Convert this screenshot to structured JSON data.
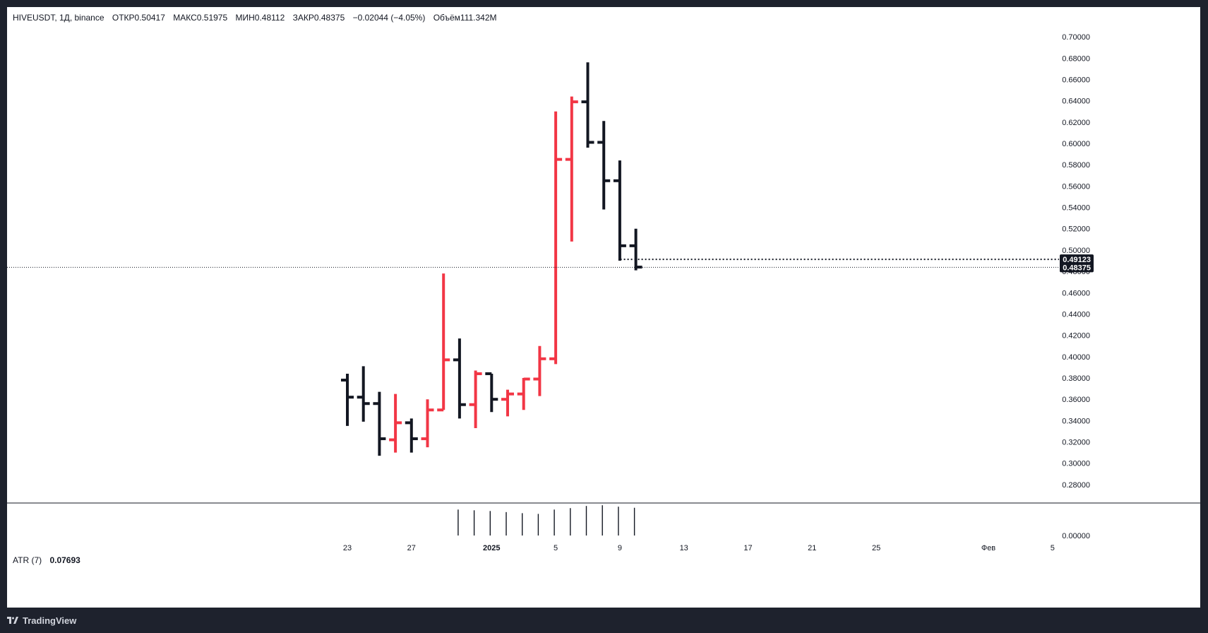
{
  "legend": {
    "symbol": "HIVEUSDT, 1Д, binance",
    "open": "ОТКР0.50417",
    "high": "МАКС0.51975",
    "low": "МИН0.48112",
    "close": "ЗАКР0.48375",
    "change": "−0.02044 (−4.05%)",
    "volume": "Объём111.342M"
  },
  "atr": {
    "label": "ATR (7)",
    "value": "0.07693",
    "axis_zero": "0.00000"
  },
  "footer": {
    "brand": "TradingView"
  },
  "colors": {
    "up": "#f23645",
    "down": "#131722",
    "background": "#ffffff",
    "frame": "#1e222d"
  },
  "price_labels": {
    "marker": "0.49123",
    "last": "0.48375"
  },
  "chart_data": {
    "type": "ohlc-bar",
    "title": "HIVEUSDT, 1Д, binance",
    "y_ticks": [
      "0.70000",
      "0.68000",
      "0.66000",
      "0.64000",
      "0.62000",
      "0.60000",
      "0.58000",
      "0.56000",
      "0.54000",
      "0.52000",
      "0.50000",
      "0.48000",
      "0.46000",
      "0.44000",
      "0.42000",
      "0.40000",
      "0.38000",
      "0.36000",
      "0.34000",
      "0.32000",
      "0.30000",
      "0.28000"
    ],
    "ylim": [
      0.272,
      0.708
    ],
    "x_ticks": [
      {
        "label": "23",
        "day": 0
      },
      {
        "label": "27",
        "day": 4
      },
      {
        "label": "2025",
        "day": 9
      },
      {
        "label": "5",
        "day": 13
      },
      {
        "label": "9",
        "day": 17
      },
      {
        "label": "13",
        "day": 21
      },
      {
        "label": "17",
        "day": 25
      },
      {
        "label": "21",
        "day": 29
      },
      {
        "label": "25",
        "day": 33
      },
      {
        "label": "Фев",
        "day": 40
      },
      {
        "label": "5",
        "day": 44
      }
    ],
    "bars": [
      {
        "day": 0,
        "open": 0.378,
        "high": 0.384,
        "low": 0.335,
        "close": 0.362
      },
      {
        "day": 1,
        "open": 0.362,
        "high": 0.391,
        "low": 0.339,
        "close": 0.356
      },
      {
        "day": 2,
        "open": 0.356,
        "high": 0.367,
        "low": 0.307,
        "close": 0.323
      },
      {
        "day": 3,
        "open": 0.322,
        "high": 0.365,
        "low": 0.31,
        "close": 0.338
      },
      {
        "day": 4,
        "open": 0.338,
        "high": 0.342,
        "low": 0.31,
        "close": 0.323
      },
      {
        "day": 5,
        "open": 0.323,
        "high": 0.36,
        "low": 0.315,
        "close": 0.35
      },
      {
        "day": 6,
        "open": 0.35,
        "high": 0.478,
        "low": 0.35,
        "close": 0.397
      },
      {
        "day": 7,
        "open": 0.397,
        "high": 0.417,
        "low": 0.342,
        "close": 0.355
      },
      {
        "day": 8,
        "open": 0.355,
        "high": 0.387,
        "low": 0.333,
        "close": 0.384
      },
      {
        "day": 9,
        "open": 0.384,
        "high": 0.384,
        "low": 0.348,
        "close": 0.36
      },
      {
        "day": 10,
        "open": 0.36,
        "high": 0.369,
        "low": 0.344,
        "close": 0.365
      },
      {
        "day": 11,
        "open": 0.365,
        "high": 0.38,
        "low": 0.35,
        "close": 0.379
      },
      {
        "day": 12,
        "open": 0.379,
        "high": 0.41,
        "low": 0.363,
        "close": 0.398
      },
      {
        "day": 13,
        "open": 0.398,
        "high": 0.63,
        "low": 0.393,
        "close": 0.585
      },
      {
        "day": 14,
        "open": 0.585,
        "high": 0.644,
        "low": 0.508,
        "close": 0.639
      },
      {
        "day": 15,
        "open": 0.639,
        "high": 0.676,
        "low": 0.596,
        "close": 0.601
      },
      {
        "day": 16,
        "open": 0.601,
        "high": 0.621,
        "low": 0.538,
        "close": 0.565
      },
      {
        "day": 17,
        "open": 0.565,
        "high": 0.584,
        "low": 0.49,
        "close": 0.504
      },
      {
        "day": 18,
        "open": 0.504,
        "high": 0.52,
        "low": 0.481,
        "close": 0.484
      }
    ],
    "atr_bars": [
      0.072,
      0.07,
      0.068,
      0.065,
      0.062,
      0.06,
      0.072,
      0.076,
      0.082,
      0.084,
      0.08,
      0.077
    ]
  }
}
